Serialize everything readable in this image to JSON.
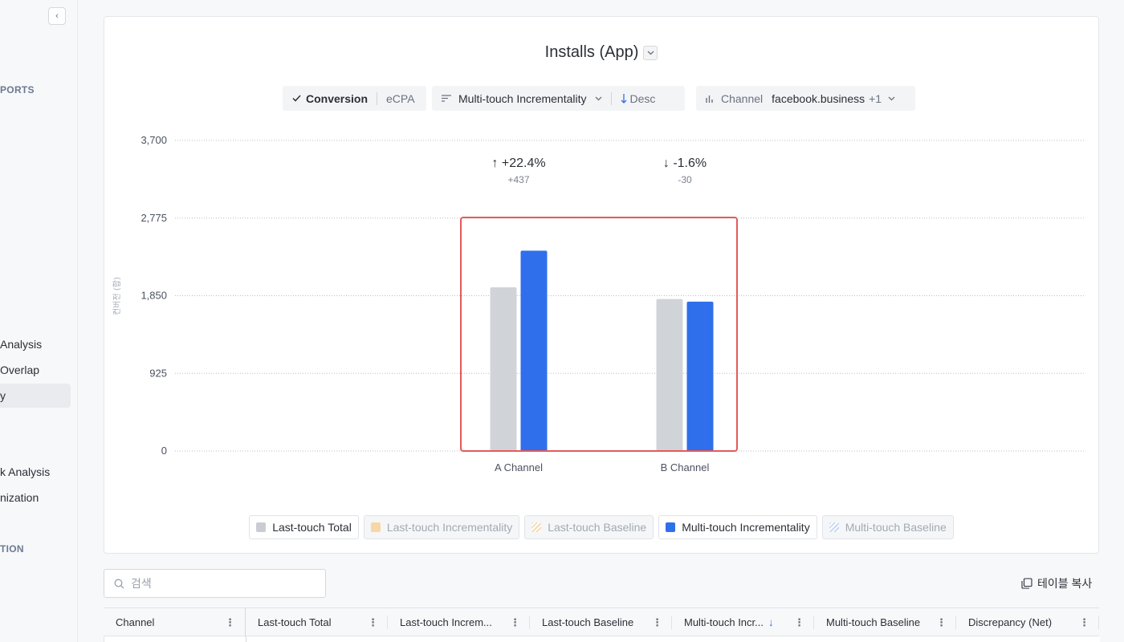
{
  "sidebar": {
    "collapse_icon": "‹",
    "sections": [
      "PORTS",
      "TION"
    ],
    "items": [
      "Analysis",
      "Overlap",
      "y",
      "k Analysis",
      "nization"
    ],
    "active_index": 2
  },
  "header": {
    "title": "Installs (App)",
    "title_dropdown_icon": "chevron-down"
  },
  "controls": {
    "metric_selected": "Conversion",
    "metric_other": "eCPA",
    "sort_field": "Multi-touch Incrementality",
    "sort_dir": "Desc",
    "channel_label": "Channel",
    "channel_value": "facebook.business",
    "channel_extra": "+1"
  },
  "chart_data": {
    "type": "bar",
    "categories": [
      "A Channel",
      "B Channel"
    ],
    "series": [
      {
        "name": "Last-touch Total",
        "color": "#d0d4d9",
        "values": [
          1950,
          1810
        ]
      },
      {
        "name": "Multi-touch Incrementality",
        "color": "#2f6fec",
        "values": [
          2387,
          1780
        ]
      }
    ],
    "ylim": [
      0,
      3700
    ],
    "yticks": [
      "3,700",
      "2,775",
      "1,850",
      "925",
      "0"
    ],
    "ylabel": "컨버전 (합)",
    "annotations": [
      {
        "category": "A Channel",
        "pct": "+22.4%",
        "diff": "+437",
        "dir": "up"
      },
      {
        "category": "B Channel",
        "pct": "-1.6%",
        "diff": "-30",
        "dir": "down"
      }
    ],
    "grid": true,
    "highlight_color": "#e35a5a"
  },
  "legend": [
    {
      "label": "Last-touch Total",
      "color": "#c9cdd3",
      "active": true,
      "pattern": false
    },
    {
      "label": "Last-touch Incrementality",
      "color": "#f6d7a6",
      "active": false,
      "pattern": false
    },
    {
      "label": "Last-touch Baseline",
      "color": "#f3dcb8",
      "active": false,
      "pattern": true
    },
    {
      "label": "Multi-touch Incrementality",
      "color": "#2f6fec",
      "active": true,
      "pattern": false
    },
    {
      "label": "Multi-touch Baseline",
      "color": "#c9d8f5",
      "active": false,
      "pattern": true
    }
  ],
  "search": {
    "placeholder": "검색"
  },
  "copy_table": "테이블 복사",
  "table": {
    "columns": [
      {
        "label": "Channel"
      },
      {
        "label": "Last-touch Total"
      },
      {
        "label": "Last-touch Increm..."
      },
      {
        "label": "Last-touch Baseline"
      },
      {
        "label": "Multi-touch Incr...",
        "sort": "↓"
      },
      {
        "label": "Multi-touch Baseline"
      },
      {
        "label": "Discrepancy (Net)"
      }
    ]
  }
}
